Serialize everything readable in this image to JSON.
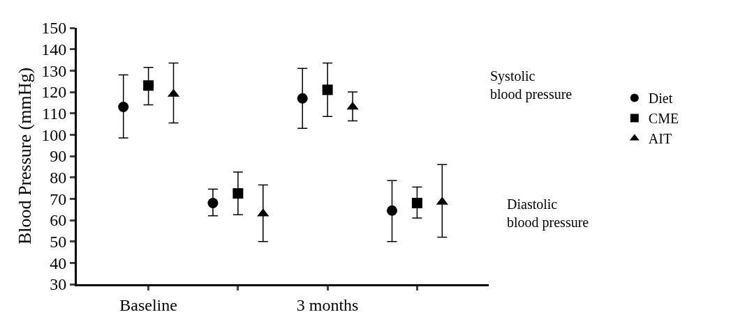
{
  "chart_data": {
    "type": "scatter",
    "ylabel": "Blood Pressure (mmHg)",
    "categories": [
      "Baseline",
      null,
      "3 months",
      null
    ],
    "series": [
      {
        "name": "Diet",
        "color": "#000000",
        "marker": "circle",
        "values": [
          113,
          68,
          117,
          64.5
        ],
        "errors": [
          [
            98.5,
            128
          ],
          [
            62,
            74.5
          ],
          [
            103,
            131
          ],
          [
            50,
            78.5
          ]
        ]
      },
      {
        "name": "CME",
        "color": "#000000",
        "marker": "square",
        "values": [
          123,
          72.5,
          121,
          68
        ],
        "errors": [
          [
            114,
            131.5
          ],
          [
            62.5,
            82.5
          ],
          [
            108.5,
            133.5
          ],
          [
            61,
            75.5
          ]
        ]
      },
      {
        "name": "AIT",
        "color": "#000000",
        "marker": "triangle",
        "values": [
          119,
          63,
          113,
          68.5
        ],
        "errors": [
          [
            105.5,
            133.5
          ],
          [
            50,
            76.5
          ],
          [
            106.5,
            120
          ],
          [
            52,
            86
          ]
        ]
      }
    ],
    "ylim": [
      30,
      150
    ],
    "yticks": [
      30,
      40,
      50,
      60,
      70,
      80,
      90,
      100,
      110,
      120,
      130,
      140,
      150
    ],
    "annotations": [
      "Systolic\nblood pressure",
      "Diastolic\nblood pressure"
    ],
    "grid": false,
    "legend": "right"
  }
}
